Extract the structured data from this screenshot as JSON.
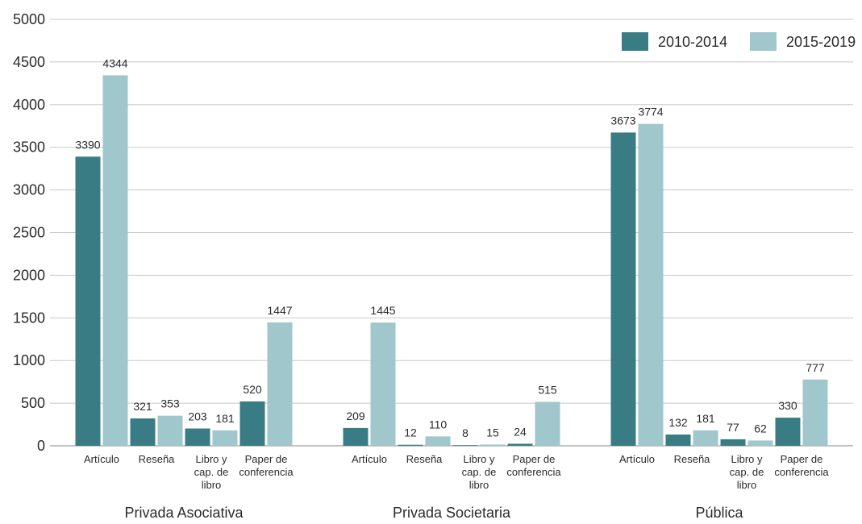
{
  "chart_data": {
    "type": "bar",
    "ylim": [
      0,
      5000
    ],
    "yticks": [
      0,
      500,
      1000,
      1500,
      2000,
      2500,
      3000,
      3500,
      4000,
      4500,
      5000
    ],
    "grid": true,
    "legend_position": "top-right",
    "series": [
      {
        "name": "2010-2014",
        "color": "#3a7c84"
      },
      {
        "name": "2015-2019",
        "color": "#9fc7cc"
      }
    ],
    "groups": [
      {
        "name": "Privada Asociativa",
        "categories": [
          {
            "label": "Artículo",
            "values": [
              3390,
              4344
            ]
          },
          {
            "label": "Reseña",
            "values": [
              321,
              353
            ]
          },
          {
            "label": "Libro y cap. de libro",
            "values": [
              203,
              181
            ]
          },
          {
            "label": "Paper de conferencia",
            "values": [
              520,
              1447
            ]
          }
        ]
      },
      {
        "name": "Privada Societaria",
        "categories": [
          {
            "label": "Artículo",
            "values": [
              209,
              1445
            ]
          },
          {
            "label": "Reseña",
            "values": [
              12,
              110
            ]
          },
          {
            "label": "Libro y cap. de libro",
            "values": [
              8,
              15
            ]
          },
          {
            "label": "Paper de conferencia",
            "values": [
              24,
              515
            ]
          }
        ]
      },
      {
        "name": "Pública",
        "categories": [
          {
            "label": "Artículo",
            "values": [
              3673,
              3774
            ]
          },
          {
            "label": "Reseña",
            "values": [
              132,
              181
            ]
          },
          {
            "label": "Libro y cap. de libro",
            "values": [
              77,
              62
            ]
          },
          {
            "label": "Paper de conferencia",
            "values": [
              330,
              777
            ]
          }
        ]
      }
    ]
  }
}
